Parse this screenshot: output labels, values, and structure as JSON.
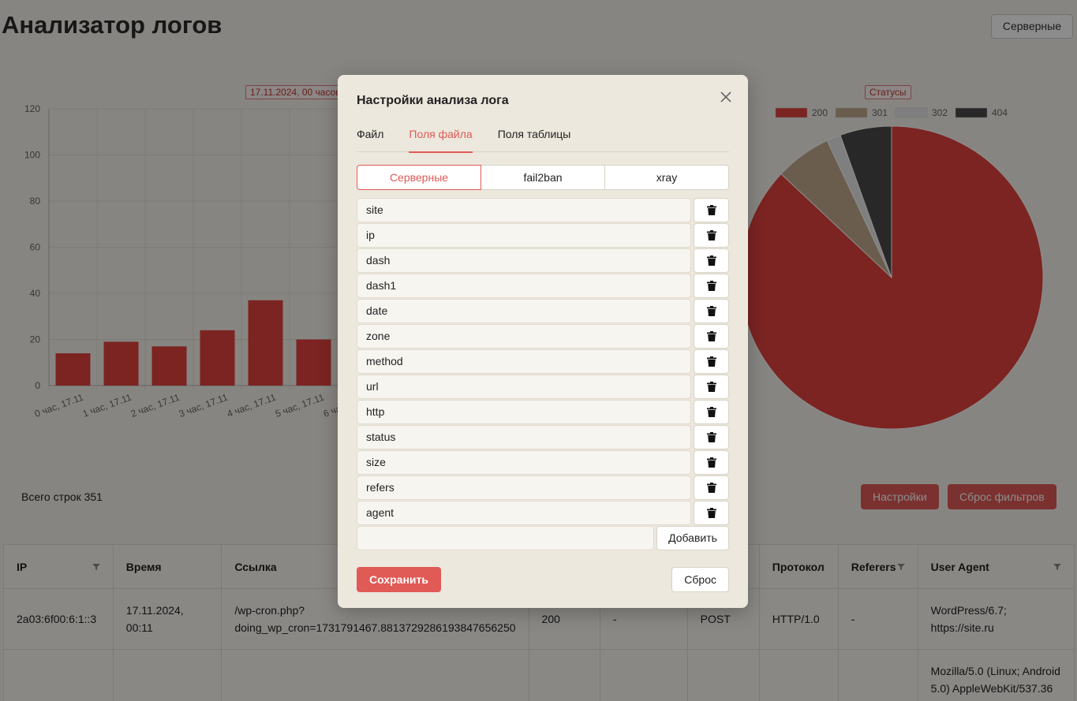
{
  "app": {
    "title": "Анализатор логов",
    "preset_button": "Серверные"
  },
  "chart_data": [
    {
      "type": "bar",
      "title": "17.11.2024, 00 часов",
      "categories": [
        "0 час, 17.11",
        "1 час, 17.11",
        "2 час, 17.11",
        "3 час, 17.11",
        "4 час, 17.11",
        "5 час, 17.11",
        "6 час, 17.11"
      ],
      "values": [
        14,
        19,
        17,
        24,
        37,
        20,
        null
      ],
      "ylim": [
        0,
        120
      ],
      "yticks": [
        0,
        20,
        40,
        60,
        80,
        100,
        120
      ],
      "color": "#e0423f",
      "grid": true
    },
    {
      "type": "pie",
      "title": "Статусы",
      "labels": [
        "200",
        "301",
        "302",
        "404"
      ],
      "values": [
        87,
        6,
        1.5,
        5.5
      ],
      "colors": [
        "#e0423f",
        "#c2a98c",
        "#e8e8e8",
        "#4a4a4a"
      ],
      "legend": "top"
    }
  ],
  "summary": {
    "total_rows": "Всего строк 351",
    "settings_button": "Настройки",
    "reset_filters_button": "Сброс фильтров"
  },
  "table": {
    "columns": [
      {
        "label": "IP",
        "filter": true
      },
      {
        "label": "Время",
        "filter": false
      },
      {
        "label": "Ссылка",
        "filter": false
      },
      {
        "label": "",
        "filter": false
      },
      {
        "label": "",
        "filter": false
      },
      {
        "label": "",
        "filter": false
      },
      {
        "label": "Протокол",
        "filter": false
      },
      {
        "label": "Referers",
        "filter": true
      },
      {
        "label": "User Agent",
        "filter": true
      }
    ],
    "rows": [
      [
        "2a03:6f00:6:1::3",
        "17.11.2024, 00:11",
        "/wp-cron.php?\ndoing_wp_cron=1731791467.8813729286193847656250",
        "200",
        "-",
        "POST",
        "HTTP/1.0",
        "-",
        "WordPress/6.7;\nhttps://site.ru"
      ],
      [
        "",
        "",
        "",
        "",
        "",
        "",
        "",
        "",
        "Mozilla/5.0 (Linux; Android\n5.0) AppleWebKit/537.36"
      ]
    ]
  },
  "modal": {
    "title": "Настройки анализа лога",
    "tabs": [
      "Файл",
      "Поля файла",
      "Поля таблицы"
    ],
    "active_tab": 1,
    "presets": [
      "Серверные",
      "fail2ban",
      "xray"
    ],
    "active_preset": 0,
    "fields": [
      "site",
      "ip",
      "dash",
      "dash1",
      "date",
      "zone",
      "method",
      "url",
      "http",
      "status",
      "size",
      "refers",
      "agent"
    ],
    "new_field_value": "",
    "add_button": "Добавить",
    "save_button": "Сохранить",
    "reset_button": "Сброс"
  }
}
